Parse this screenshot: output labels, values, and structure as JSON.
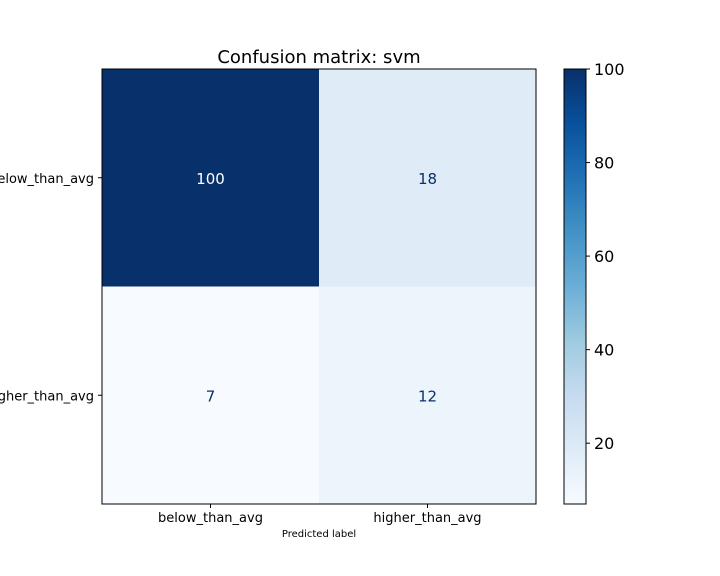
{
  "chart_data": {
    "type": "heatmap",
    "title": "Confusion matrix: svm",
    "xlabel": "Predicted label",
    "ylabel": "",
    "x_categories": [
      "below_than_avg",
      "higher_than_avg"
    ],
    "y_categories": [
      "below_than_avg",
      "higher_than_avg"
    ],
    "values": [
      [
        100,
        18
      ],
      [
        7,
        12
      ]
    ],
    "colormap": "Blues",
    "colorbar": {
      "min": 7,
      "max": 100,
      "ticks": [
        20,
        40,
        60,
        80,
        100
      ]
    },
    "grid": false
  }
}
